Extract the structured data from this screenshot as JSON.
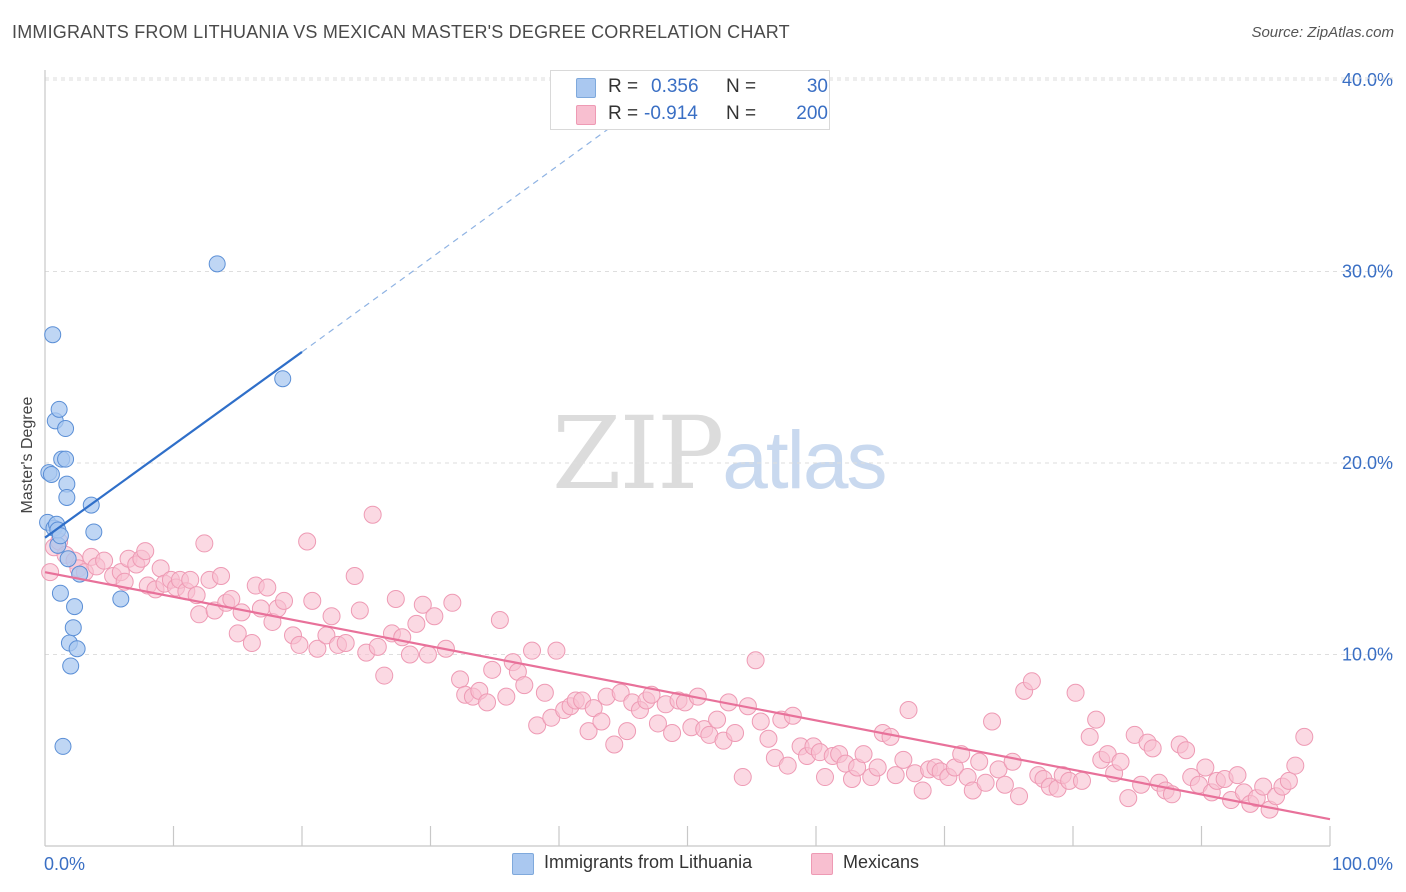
{
  "title": "IMMIGRANTS FROM LITHUANIA VS MEXICAN MASTER'S DEGREE CORRELATION CHART",
  "source": "Source: ZipAtlas.com",
  "watermark": {
    "zip": "ZIP",
    "atlas": "atlas"
  },
  "legend": {
    "rows": [
      {
        "r_label": "R =",
        "r_value": "0.356",
        "n_label": "N =",
        "n_value": "30",
        "color": "#aac8f0"
      },
      {
        "r_label": "R =",
        "r_value": "-0.914",
        "n_label": "N =",
        "n_value": "200",
        "color": "#f8bfd0"
      }
    ]
  },
  "bottom_legend": [
    {
      "label": "Immigrants from Lithuania",
      "color": "#aac8f0"
    },
    {
      "label": "Mexicans",
      "color": "#f8bfd0"
    }
  ],
  "chart_data": {
    "type": "scatter",
    "title": "IMMIGRANTS FROM LITHUANIA VS MEXICAN MASTER'S DEGREE CORRELATION CHART",
    "xlabel": "",
    "ylabel": "Master's Degree",
    "xlim": [
      0,
      100
    ],
    "ylim": [
      0,
      42
    ],
    "x_tick_labels": [
      "0.0%",
      "100.0%"
    ],
    "y_ticks": [
      10,
      20,
      30,
      40
    ],
    "y_tick_labels": [
      "10.0%",
      "20.0%",
      "30.0%",
      "40.0%"
    ],
    "grid": true,
    "legend_position": "top-center",
    "colors": {
      "lithuania": "#5b8fd6",
      "lithuania_fill": "#aac8f0",
      "mexicans": "#e8719a",
      "mexicans_fill": "#f8bfd0",
      "tick_label": "#3a6fc4"
    },
    "series": [
      {
        "name": "Immigrants from Lithuania",
        "points": [
          [
            0.2,
            16.9
          ],
          [
            0.3,
            19.5
          ],
          [
            0.5,
            19.4
          ],
          [
            0.6,
            26.7
          ],
          [
            0.7,
            16.6
          ],
          [
            0.8,
            22.2
          ],
          [
            0.9,
            16.8
          ],
          [
            1.0,
            15.7
          ],
          [
            1.0,
            16.5
          ],
          [
            1.1,
            22.8
          ],
          [
            1.2,
            16.2
          ],
          [
            1.2,
            13.2
          ],
          [
            1.3,
            20.2
          ],
          [
            1.4,
            5.2
          ],
          [
            1.6,
            21.8
          ],
          [
            1.6,
            20.2
          ],
          [
            1.7,
            18.9
          ],
          [
            1.7,
            18.2
          ],
          [
            1.8,
            15.0
          ],
          [
            1.9,
            10.6
          ],
          [
            2.0,
            9.4
          ],
          [
            2.2,
            11.4
          ],
          [
            2.3,
            12.5
          ],
          [
            2.5,
            10.3
          ],
          [
            2.7,
            14.2
          ],
          [
            3.6,
            17.8
          ],
          [
            3.8,
            16.4
          ],
          [
            5.9,
            12.9
          ],
          [
            13.4,
            30.4
          ],
          [
            18.5,
            24.4
          ]
        ],
        "trend": {
          "x0": 0,
          "y0": 16.1,
          "x1": 20,
          "y1": 25.8,
          "dashed_to_x": 46,
          "dashed_to_y": 38.5
        }
      },
      {
        "name": "Mexicans",
        "points": [
          [
            0.4,
            14.3
          ],
          [
            0.7,
            15.6
          ],
          [
            1.1,
            15.9
          ],
          [
            1.6,
            15.2
          ],
          [
            2.3,
            14.9
          ],
          [
            2.6,
            14.5
          ],
          [
            3.1,
            14.3
          ],
          [
            3.6,
            15.1
          ],
          [
            4.0,
            14.6
          ],
          [
            4.6,
            14.9
          ],
          [
            5.3,
            14.1
          ],
          [
            5.9,
            14.3
          ],
          [
            6.2,
            13.8
          ],
          [
            6.5,
            15.0
          ],
          [
            7.1,
            14.7
          ],
          [
            7.5,
            15.0
          ],
          [
            7.8,
            15.4
          ],
          [
            8.0,
            13.6
          ],
          [
            8.6,
            13.4
          ],
          [
            9.0,
            14.5
          ],
          [
            9.3,
            13.7
          ],
          [
            9.8,
            13.9
          ],
          [
            10.2,
            13.5
          ],
          [
            10.5,
            13.9
          ],
          [
            11.0,
            13.3
          ],
          [
            11.3,
            13.9
          ],
          [
            11.8,
            13.1
          ],
          [
            12.0,
            12.1
          ],
          [
            12.4,
            15.8
          ],
          [
            12.8,
            13.9
          ],
          [
            13.2,
            12.3
          ],
          [
            13.7,
            14.1
          ],
          [
            14.1,
            12.7
          ],
          [
            14.5,
            12.9
          ],
          [
            15.0,
            11.1
          ],
          [
            15.3,
            12.2
          ],
          [
            16.1,
            10.6
          ],
          [
            16.4,
            13.6
          ],
          [
            16.8,
            12.4
          ],
          [
            17.3,
            13.5
          ],
          [
            17.7,
            11.7
          ],
          [
            18.1,
            12.4
          ],
          [
            18.6,
            12.8
          ],
          [
            19.3,
            11.0
          ],
          [
            19.8,
            10.5
          ],
          [
            20.4,
            15.9
          ],
          [
            20.8,
            12.8
          ],
          [
            21.2,
            10.3
          ],
          [
            21.9,
            11.0
          ],
          [
            22.3,
            12.0
          ],
          [
            22.8,
            10.5
          ],
          [
            23.4,
            10.6
          ],
          [
            24.1,
            14.1
          ],
          [
            24.5,
            12.3
          ],
          [
            25.0,
            10.1
          ],
          [
            25.5,
            17.3
          ],
          [
            25.9,
            10.4
          ],
          [
            26.4,
            8.9
          ],
          [
            27.0,
            11.1
          ],
          [
            27.3,
            12.9
          ],
          [
            27.8,
            10.9
          ],
          [
            28.4,
            10.0
          ],
          [
            28.9,
            11.6
          ],
          [
            29.4,
            12.6
          ],
          [
            29.8,
            10.0
          ],
          [
            30.3,
            12.0
          ],
          [
            31.2,
            10.3
          ],
          [
            31.7,
            12.7
          ],
          [
            32.3,
            8.7
          ],
          [
            32.7,
            7.9
          ],
          [
            33.3,
            7.8
          ],
          [
            33.8,
            8.1
          ],
          [
            34.4,
            7.5
          ],
          [
            34.8,
            9.2
          ],
          [
            35.4,
            11.8
          ],
          [
            35.9,
            7.8
          ],
          [
            36.4,
            9.6
          ],
          [
            36.8,
            9.1
          ],
          [
            37.3,
            8.4
          ],
          [
            37.9,
            10.2
          ],
          [
            38.3,
            6.3
          ],
          [
            38.9,
            8.0
          ],
          [
            39.4,
            6.7
          ],
          [
            39.8,
            10.2
          ],
          [
            40.4,
            7.1
          ],
          [
            40.9,
            7.3
          ],
          [
            41.3,
            7.6
          ],
          [
            41.8,
            7.6
          ],
          [
            42.3,
            6.0
          ],
          [
            42.7,
            7.2
          ],
          [
            43.3,
            6.5
          ],
          [
            43.7,
            7.8
          ],
          [
            44.3,
            5.3
          ],
          [
            44.8,
            8.0
          ],
          [
            45.3,
            6.0
          ],
          [
            45.7,
            7.5
          ],
          [
            46.3,
            7.1
          ],
          [
            46.8,
            7.6
          ],
          [
            47.2,
            7.9
          ],
          [
            47.7,
            6.4
          ],
          [
            48.3,
            7.4
          ],
          [
            48.8,
            5.9
          ],
          [
            49.3,
            7.6
          ],
          [
            49.8,
            7.5
          ],
          [
            50.3,
            6.2
          ],
          [
            50.8,
            7.8
          ],
          [
            51.3,
            6.1
          ],
          [
            51.7,
            5.8
          ],
          [
            52.3,
            6.6
          ],
          [
            52.8,
            5.5
          ],
          [
            53.2,
            7.5
          ],
          [
            53.7,
            5.9
          ],
          [
            54.3,
            3.6
          ],
          [
            54.7,
            7.3
          ],
          [
            55.3,
            9.7
          ],
          [
            55.7,
            6.5
          ],
          [
            56.3,
            5.6
          ],
          [
            56.8,
            4.6
          ],
          [
            57.3,
            6.6
          ],
          [
            57.8,
            4.2
          ],
          [
            58.2,
            6.8
          ],
          [
            58.8,
            5.2
          ],
          [
            59.3,
            4.7
          ],
          [
            59.8,
            5.2
          ],
          [
            60.3,
            4.9
          ],
          [
            60.7,
            3.6
          ],
          [
            61.3,
            4.7
          ],
          [
            61.8,
            4.8
          ],
          [
            62.3,
            4.3
          ],
          [
            62.8,
            3.5
          ],
          [
            63.2,
            4.1
          ],
          [
            63.7,
            4.8
          ],
          [
            64.3,
            3.6
          ],
          [
            64.8,
            4.1
          ],
          [
            65.2,
            5.9
          ],
          [
            65.8,
            5.7
          ],
          [
            66.2,
            3.7
          ],
          [
            66.8,
            4.5
          ],
          [
            67.2,
            7.1
          ],
          [
            67.7,
            3.8
          ],
          [
            68.3,
            2.9
          ],
          [
            68.8,
            4.0
          ],
          [
            69.3,
            4.1
          ],
          [
            69.7,
            3.9
          ],
          [
            70.3,
            3.6
          ],
          [
            70.8,
            4.1
          ],
          [
            71.3,
            4.8
          ],
          [
            71.8,
            3.6
          ],
          [
            72.2,
            2.9
          ],
          [
            72.7,
            4.4
          ],
          [
            73.2,
            3.3
          ],
          [
            73.7,
            6.5
          ],
          [
            74.2,
            4.0
          ],
          [
            74.7,
            3.2
          ],
          [
            75.3,
            4.4
          ],
          [
            75.8,
            2.6
          ],
          [
            76.2,
            8.1
          ],
          [
            76.8,
            8.6
          ],
          [
            77.3,
            3.7
          ],
          [
            77.7,
            3.5
          ],
          [
            78.2,
            3.1
          ],
          [
            78.8,
            3.0
          ],
          [
            79.2,
            3.7
          ],
          [
            79.7,
            3.4
          ],
          [
            80.2,
            8.0
          ],
          [
            80.7,
            3.4
          ],
          [
            81.3,
            5.7
          ],
          [
            81.8,
            6.6
          ],
          [
            82.2,
            4.5
          ],
          [
            82.7,
            4.8
          ],
          [
            83.2,
            3.8
          ],
          [
            83.7,
            4.4
          ],
          [
            84.3,
            2.5
          ],
          [
            84.8,
            5.8
          ],
          [
            85.3,
            3.2
          ],
          [
            85.8,
            5.4
          ],
          [
            86.2,
            5.1
          ],
          [
            86.7,
            3.3
          ],
          [
            87.2,
            2.9
          ],
          [
            87.7,
            2.7
          ],
          [
            88.3,
            5.3
          ],
          [
            88.8,
            5.0
          ],
          [
            89.2,
            3.6
          ],
          [
            89.8,
            3.2
          ],
          [
            90.3,
            4.1
          ],
          [
            90.8,
            2.8
          ],
          [
            91.2,
            3.4
          ],
          [
            91.8,
            3.5
          ],
          [
            92.3,
            2.4
          ],
          [
            92.8,
            3.7
          ],
          [
            93.3,
            2.8
          ],
          [
            93.8,
            2.2
          ],
          [
            94.3,
            2.5
          ],
          [
            94.8,
            3.1
          ],
          [
            95.3,
            1.9
          ],
          [
            95.8,
            2.6
          ],
          [
            96.3,
            3.1
          ],
          [
            96.8,
            3.4
          ],
          [
            97.3,
            4.2
          ],
          [
            98.0,
            5.7
          ]
        ],
        "trend": {
          "x0": 0,
          "y0": 14.3,
          "x1": 100,
          "y1": 1.4
        }
      }
    ]
  }
}
